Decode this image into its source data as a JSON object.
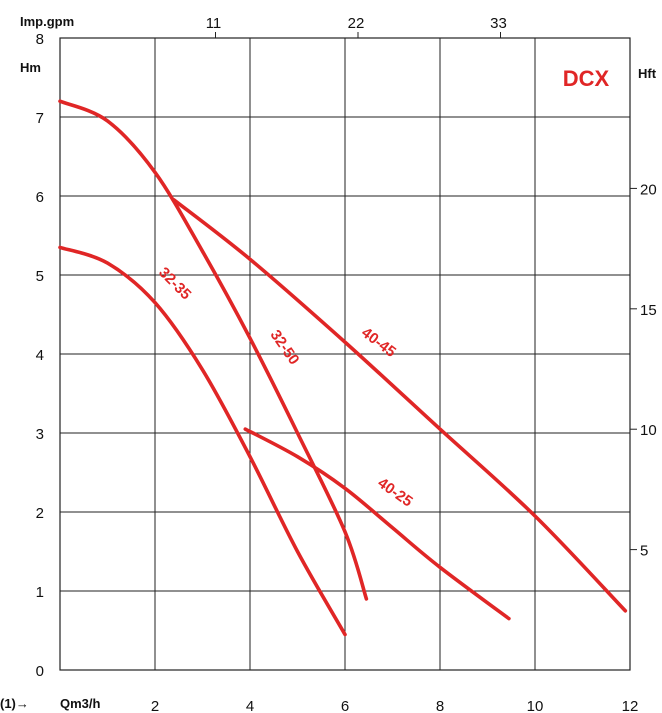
{
  "chart_data": {
    "type": "line",
    "title": "DCX",
    "xlabel": "Qm3/h",
    "xlabel_prefix": "(1)→",
    "ylabel_left": "Hm",
    "ylabel_right": "Hft",
    "top_axis_label": "Imp.gpm",
    "xlim": [
      0,
      12
    ],
    "ylim": [
      0,
      8
    ],
    "x_ticks": [
      "2",
      "4",
      "6",
      "8",
      "10",
      "12"
    ],
    "y_ticks": [
      "0",
      "1",
      "2",
      "3",
      "4",
      "5",
      "6",
      "7",
      "8"
    ],
    "top_ticks": [
      {
        "label": "11",
        "x_m3h": 3.0
      },
      {
        "label": "22",
        "x_m3h": 6.0
      },
      {
        "label": "33",
        "x_m3h": 9.0
      }
    ],
    "right_ticks": [
      {
        "label": "5",
        "y_m": 1.524
      },
      {
        "label": "10",
        "y_m": 3.048
      },
      {
        "label": "15",
        "y_m": 4.572
      },
      {
        "label": "20",
        "y_m": 6.096
      }
    ],
    "grid": true,
    "line_color": "#e02626",
    "series": [
      {
        "name": "32-35",
        "points": [
          [
            0,
            5.35
          ],
          [
            1,
            5.15
          ],
          [
            2,
            4.65
          ],
          [
            3,
            3.8
          ],
          [
            4,
            2.7
          ],
          [
            5,
            1.5
          ],
          [
            6,
            0.45
          ]
        ]
      },
      {
        "name": "32-50",
        "points": [
          [
            0,
            7.2
          ],
          [
            1,
            6.95
          ],
          [
            2,
            6.3
          ],
          [
            3,
            5.3
          ],
          [
            4,
            4.2
          ],
          [
            5,
            3.0
          ],
          [
            6,
            1.75
          ],
          [
            6.45,
            0.9
          ]
        ]
      },
      {
        "name": "40-45",
        "points": [
          [
            2.4,
            5.95
          ],
          [
            4,
            5.2
          ],
          [
            6,
            4.15
          ],
          [
            8,
            3.05
          ],
          [
            10,
            1.95
          ],
          [
            11.9,
            0.75
          ]
        ]
      },
      {
        "name": "40-25",
        "points": [
          [
            3.9,
            3.05
          ],
          [
            5,
            2.7
          ],
          [
            6,
            2.3
          ],
          [
            7,
            1.8
          ],
          [
            8,
            1.3
          ],
          [
            9.45,
            0.65
          ]
        ]
      }
    ]
  }
}
